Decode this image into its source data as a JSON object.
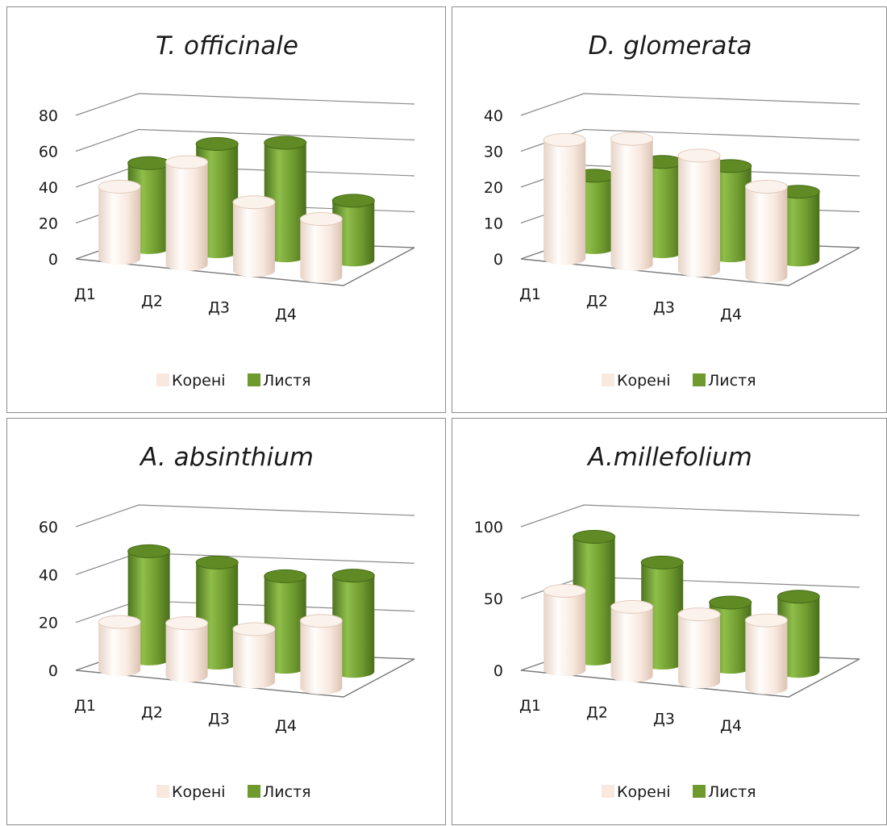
{
  "colors": {
    "roots": "#f8e8de",
    "leaves": "#6e9a2e",
    "grid": "#8a8a8a"
  },
  "legend": {
    "roots_label": "Корені",
    "leaves_label": "Листя"
  },
  "chart_data": [
    {
      "type": "bar",
      "title": "T. officinale",
      "categories": [
        "Д1",
        "Д2",
        "Д3",
        "Д4"
      ],
      "series": [
        {
          "name": "Корені",
          "values": [
            40,
            57,
            38,
            32
          ]
        },
        {
          "name": "Листя",
          "values": [
            47,
            60,
            63,
            33
          ]
        }
      ],
      "yticks": [
        "0",
        "20",
        "40",
        "60",
        "80"
      ],
      "ylim": [
        0,
        80
      ],
      "legend_position": "bottom"
    },
    {
      "type": "bar",
      "title": "D. glomerata",
      "categories": [
        "Д1",
        "Д2",
        "Д3",
        "Д4"
      ],
      "series": [
        {
          "name": "Корені",
          "values": [
            33,
            35,
            32,
            25
          ]
        },
        {
          "name": "Листя",
          "values": [
            20,
            25,
            25,
            19
          ]
        }
      ],
      "yticks": [
        "0",
        "10",
        "20",
        "30",
        "40"
      ],
      "ylim": [
        0,
        40
      ],
      "legend_position": "bottom"
    },
    {
      "type": "bar",
      "title": "A. absinthium",
      "categories": [
        "Д1",
        "Д2",
        "Д3",
        "Д4"
      ],
      "series": [
        {
          "name": "Корені",
          "values": [
            20,
            22,
            22,
            28
          ]
        },
        {
          "name": "Листя",
          "values": [
            45,
            42,
            38,
            40
          ]
        }
      ],
      "yticks": [
        "0",
        "20",
        "40",
        "60"
      ],
      "ylim": [
        0,
        60
      ],
      "legend_position": "bottom"
    },
    {
      "type": "bar",
      "title": "A.millefolium",
      "categories": [
        "Д1",
        "Д2",
        "Д3",
        "Д4"
      ],
      "series": [
        {
          "name": "Корені",
          "values": [
            55,
            48,
            47,
            47
          ]
        },
        {
          "name": "Листя",
          "values": [
            85,
            70,
            45,
            52
          ]
        }
      ],
      "yticks": [
        "0",
        "50",
        "100"
      ],
      "ylim": [
        0,
        100
      ],
      "legend_position": "bottom"
    }
  ]
}
